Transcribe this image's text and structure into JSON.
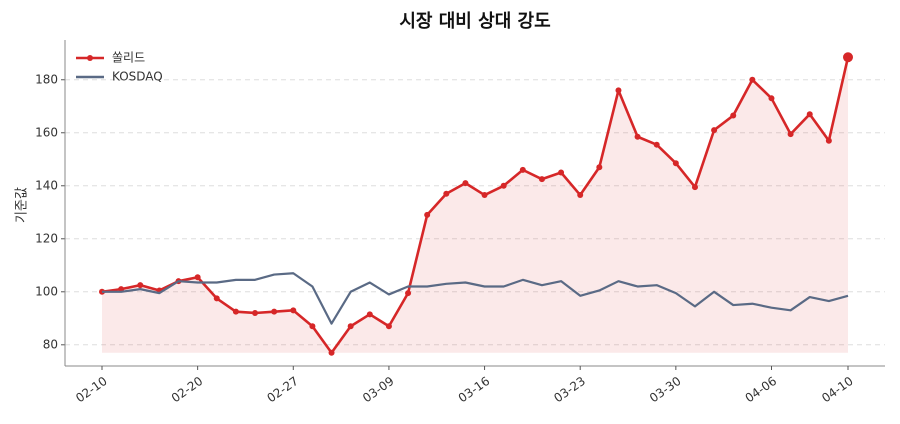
{
  "chart_data": {
    "type": "line",
    "title": "시장 대비 상대 강도",
    "y_label": "기준값",
    "categories": [
      "02-10",
      null,
      null,
      null,
      null,
      "02-20",
      null,
      null,
      null,
      null,
      "02-27",
      null,
      null,
      null,
      null,
      "03-09",
      null,
      null,
      null,
      null,
      "03-16",
      null,
      null,
      null,
      null,
      "03-23",
      null,
      null,
      null,
      null,
      "03-30",
      null,
      null,
      null,
      null,
      "04-06",
      null,
      null,
      null,
      "04-10"
    ],
    "series": [
      {
        "name": "쏠리드",
        "color": "#d62728",
        "values": [
          100,
          101,
          102.5,
          100.5,
          104,
          105.5,
          97.5,
          92.5,
          92,
          92.5,
          93,
          87,
          77,
          87,
          91.5,
          87,
          99.5,
          129,
          137,
          141,
          136.5,
          140,
          146,
          142.5,
          145,
          136.5,
          147,
          176,
          158.5,
          155.5,
          148.5,
          139.5,
          161,
          166.5,
          180,
          173,
          159.5,
          167,
          157,
          188.5
        ]
      },
      {
        "name": "KOSDAQ",
        "color": "#5a6a85",
        "values": [
          100,
          100,
          101,
          99.5,
          104,
          103.5,
          103.5,
          104.5,
          104.5,
          106.5,
          107,
          102,
          88,
          100,
          103.5,
          99,
          102,
          102,
          103,
          103.5,
          102,
          102,
          104.5,
          102.5,
          104,
          98.5,
          100.5,
          104,
          102,
          102.5,
          99.5,
          94.5,
          100,
          95,
          95.5,
          94,
          93,
          98,
          96.5,
          98.5
        ]
      }
    ],
    "ylim": [
      72,
      195
    ],
    "yticks": [
      80,
      100,
      120,
      140,
      160,
      180
    ],
    "grid": true,
    "legend": "upper-left"
  }
}
